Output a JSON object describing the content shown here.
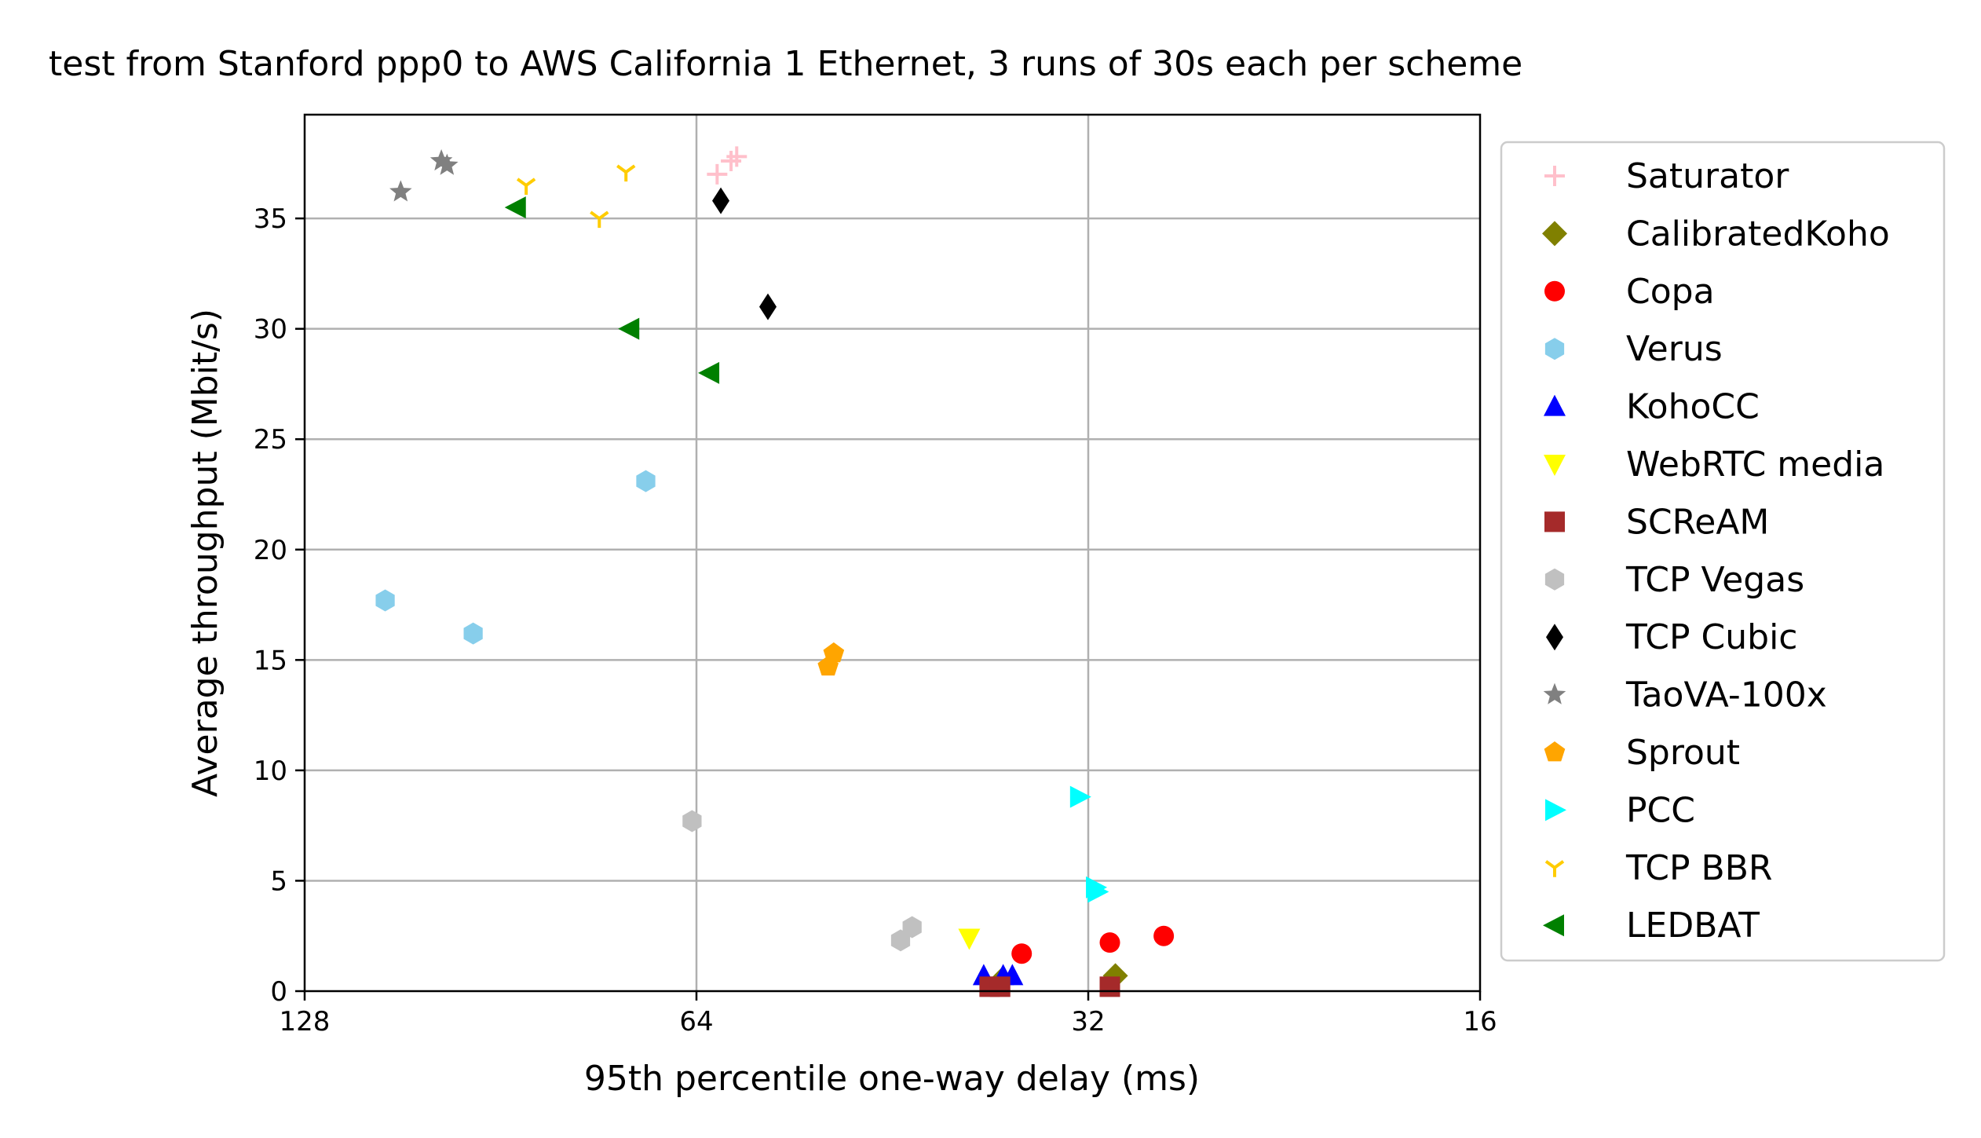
{
  "chart_data": {
    "type": "scatter",
    "title": "test from Stanford ppp0 to AWS California 1 Ethernet, 3 runs of 30s each per scheme",
    "xlabel": "95th percentile one-way delay (ms)",
    "ylabel": "Average throughput (Mbit/s)",
    "x_scale": "log2",
    "x_inverted": true,
    "xlim": [
      128,
      16
    ],
    "ylim": [
      0,
      39.7
    ],
    "xticks": [
      128,
      64,
      32,
      16
    ],
    "xtick_labels": [
      "128",
      "64",
      "32",
      "16"
    ],
    "yticks": [
      0,
      5,
      10,
      15,
      20,
      25,
      30,
      35
    ],
    "ytick_labels": [
      "0",
      "5",
      "10",
      "15",
      "20",
      "25",
      "30",
      "35"
    ],
    "grid": true,
    "legend_position": "outside-right",
    "series": [
      {
        "name": "Saturator",
        "marker": "plus",
        "color": "#ffc0cb",
        "x": [
          61.7,
          60.2,
          59.6
        ],
        "y": [
          37.0,
          37.6,
          37.8
        ]
      },
      {
        "name": "CalibratedKoho",
        "marker": "diamond",
        "color": "#808000",
        "x": [
          30.5,
          37.3
        ],
        "y": [
          0.7,
          0.5
        ]
      },
      {
        "name": "Copa",
        "marker": "circle",
        "color": "#ff0000",
        "x": [
          36.0,
          30.8,
          28.0
        ],
        "y": [
          1.7,
          2.2,
          2.5
        ]
      },
      {
        "name": "Verus",
        "marker": "hexagon",
        "color": "#87ceeb",
        "x": [
          111.0,
          95.0,
          70.0
        ],
        "y": [
          17.7,
          16.2,
          23.1
        ]
      },
      {
        "name": "KohoCC",
        "marker": "triangle-up",
        "color": "#0000ff",
        "x": [
          38.5,
          37.2,
          36.6
        ],
        "y": [
          0.7,
          0.7,
          0.7
        ]
      },
      {
        "name": "WebRTC media",
        "marker": "triangle-down",
        "color": "#ffff00",
        "x": [
          39.5
        ],
        "y": [
          2.4
        ]
      },
      {
        "name": "SCReAM",
        "marker": "square",
        "color": "#a52a2a",
        "x": [
          38.1,
          37.4,
          30.8
        ],
        "y": [
          0.2,
          0.2,
          0.2
        ]
      },
      {
        "name": "TCP Vegas",
        "marker": "hexagon",
        "color": "#c0c0c0",
        "x": [
          64.5,
          44.6,
          43.7
        ],
        "y": [
          7.7,
          2.3,
          2.9
        ]
      },
      {
        "name": "TCP Cubic",
        "marker": "thin-diamond",
        "color": "#000000",
        "x": [
          61.3,
          56.4
        ],
        "y": [
          35.8,
          31.0
        ]
      },
      {
        "name": "TaoVA-100x",
        "marker": "star",
        "color": "#808080",
        "x": [
          108.0,
          100.5,
          99.5
        ],
        "y": [
          36.2,
          37.6,
          37.4
        ]
      },
      {
        "name": "Sprout",
        "marker": "pentagon",
        "color": "#ffa500",
        "x": [
          50.7,
          50.2
        ],
        "y": [
          14.7,
          15.3
        ]
      },
      {
        "name": "PCC",
        "marker": "triangle-right",
        "color": "#00ffff",
        "x": [
          32.5,
          31.6,
          31.5
        ],
        "y": [
          8.8,
          4.7,
          4.5
        ]
      },
      {
        "name": "TCP BBR",
        "marker": "tri-down",
        "color": "#ffcc00",
        "x": [
          86.5,
          76.0,
          72.5
        ],
        "y": [
          36.5,
          35.0,
          37.1
        ]
      },
      {
        "name": "LEDBAT",
        "marker": "triangle-left",
        "color": "#008000",
        "x": [
          88.0,
          72.0,
          62.5
        ],
        "y": [
          35.5,
          30.0,
          28.0
        ]
      }
    ]
  }
}
